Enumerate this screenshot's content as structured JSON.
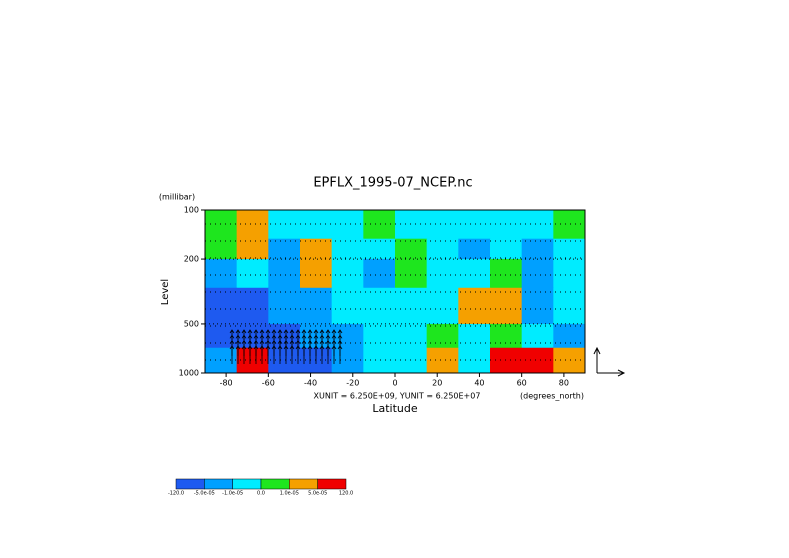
{
  "chart_data": {
    "type": "contour",
    "title": "EPFLX_1995-07_NCEP.nc",
    "y_unit": "(millibar)",
    "ylabel": "Level",
    "xlabel": "Latitude",
    "annotation": "XUNIT = 6.250E+09, YUNIT = 6.250E+07",
    "x_unit": "(degrees_north)",
    "xlim": [
      -90,
      90
    ],
    "xticks": [
      -80,
      -60,
      -40,
      -20,
      0,
      20,
      40,
      60,
      80
    ],
    "ylim": [
      100,
      1000
    ],
    "yticks": [
      100,
      200,
      500,
      1000
    ],
    "ylog": true,
    "yreversed": true,
    "field": {
      "lat_edges": [
        -90,
        -75,
        -60,
        -45,
        -30,
        -15,
        0,
        15,
        30,
        45,
        60,
        75,
        90
      ],
      "lev_edges": [
        100,
        150,
        200,
        300,
        500,
        700,
        1000
      ],
      "values": [
        [
          5e-06,
          3e-05,
          -5e-06,
          -5e-06,
          -5e-06,
          5e-06,
          -5e-06,
          -5e-06,
          -5e-06,
          -5e-06,
          -5e-06,
          5e-06
        ],
        [
          5e-06,
          3e-05,
          -3e-05,
          3e-05,
          -5e-06,
          -5e-06,
          5e-06,
          -5e-06,
          -3e-05,
          -5e-06,
          -3e-05,
          -5e-06
        ],
        [
          -3e-05,
          -5e-06,
          -3e-05,
          3e-05,
          -5e-06,
          -3e-05,
          5e-06,
          -5e-06,
          -5e-06,
          5e-06,
          -3e-05,
          -5e-06
        ],
        [
          -0.0001,
          -0.0001,
          -3e-05,
          -3e-05,
          -5e-06,
          -5e-06,
          -5e-06,
          -5e-06,
          3e-05,
          3e-05,
          -3e-05,
          -5e-06
        ],
        [
          -0.0001,
          -0.0001,
          -0.0001,
          -3e-05,
          -3e-05,
          -5e-06,
          -5e-06,
          5e-06,
          -5e-06,
          5e-06,
          -5e-06,
          -3e-05
        ],
        [
          -3e-05,
          0.0001,
          -0.0001,
          -0.0001,
          -3e-05,
          -5e-06,
          -5e-06,
          3e-05,
          -5e-06,
          0.0001,
          0.0001,
          3e-05
        ]
      ]
    },
    "levels": [
      {
        "value": -120,
        "label": "-120.0"
      },
      {
        "value": -5e-05,
        "label": "-5.0e-05"
      },
      {
        "value": -1e-05,
        "label": "-1.0e-05"
      },
      {
        "value": 0,
        "label": "0.0"
      },
      {
        "value": 1e-05,
        "label": "1.0e-05"
      },
      {
        "value": 5e-05,
        "label": "5.0e-05"
      },
      {
        "value": 120,
        "label": "120.0"
      }
    ],
    "colors": [
      "#1e5af0",
      "#00a0ff",
      "#00ecff",
      "#1ee61e",
      "#f5a000",
      "#f00000"
    ]
  }
}
